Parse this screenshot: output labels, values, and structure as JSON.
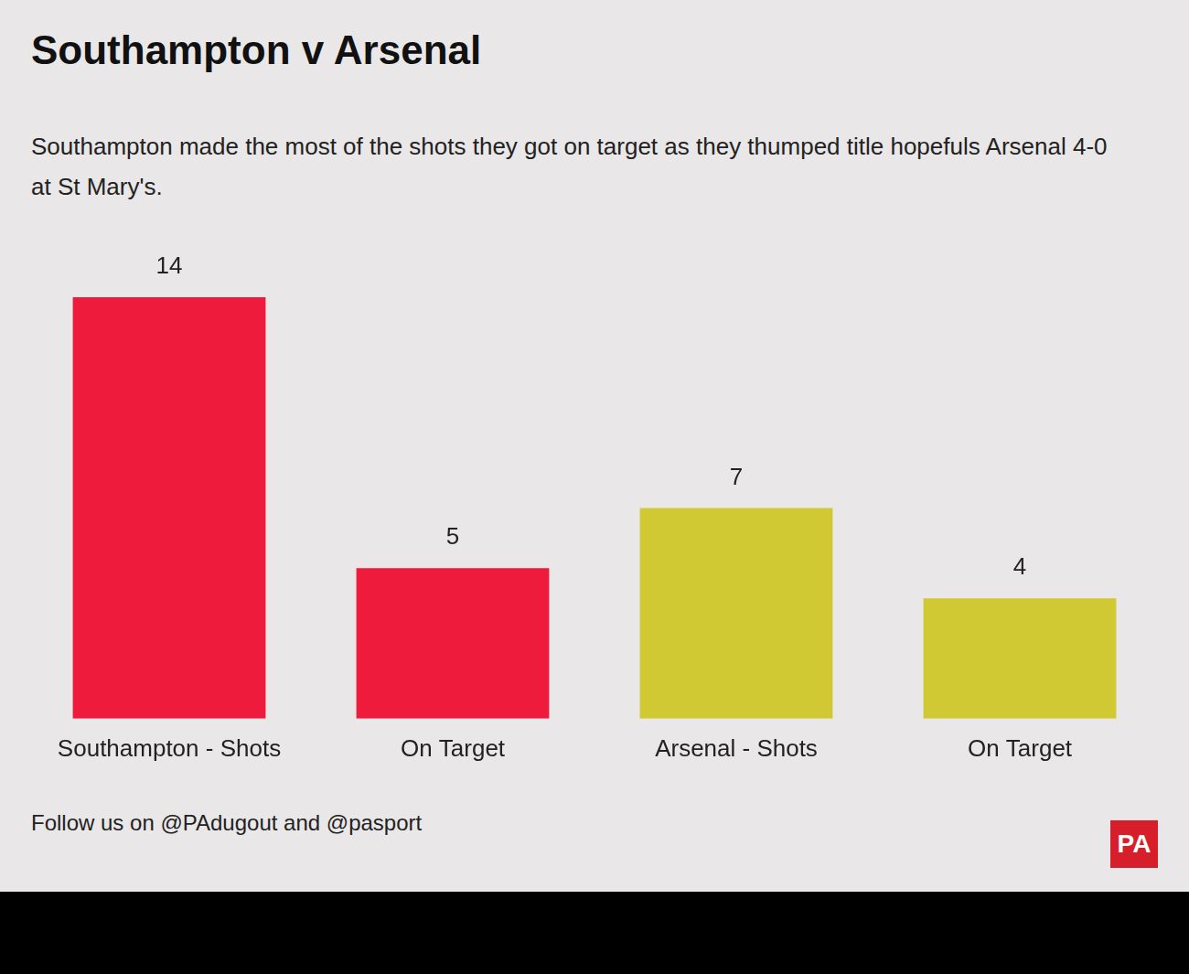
{
  "chart_data": {
    "type": "bar",
    "title": "Southampton v Arsenal",
    "subtitle": "Southampton made the most of the shots they got on target as they thumped title hopefuls Arsenal 4-0 at St Mary's.",
    "categories": [
      "Southampton - Shots",
      "On Target",
      "Arsenal - Shots",
      "On Target"
    ],
    "values": [
      14,
      5,
      7,
      4
    ],
    "colors": [
      "#ee1b3c",
      "#ee1b3c",
      "#d1c934",
      "#d1c934"
    ],
    "ylim": [
      0,
      14
    ],
    "grid": false,
    "data_labels": true,
    "tick_labels": "x",
    "footer": "Follow us on @PAdugout and @pasport",
    "logo": "PA"
  }
}
